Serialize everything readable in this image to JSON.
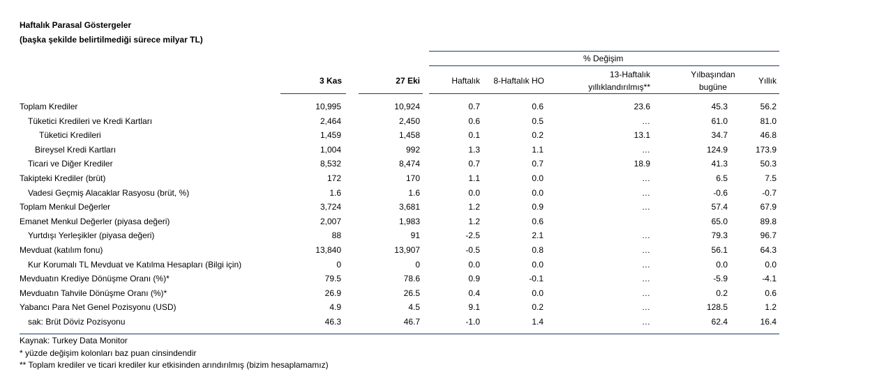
{
  "title": "Haftalık Parasal Göstergeler",
  "subtitle": "(başka şekilde belirtilmediği sürece milyar TL)",
  "header": {
    "pct_change": "% Değişim",
    "col1": "3 Kas",
    "col2": "27 Eki",
    "col3": "Haftalık",
    "col4": "8-Haftalık HO",
    "col5_line1": "13-Haftalık",
    "col5_line2": "yıllıklandırılmış**",
    "col6_line1": "Yılbaşından",
    "col6_line2": "bugüne",
    "col7": "Yıllık"
  },
  "rows": [
    {
      "label": "Toplam Krediler",
      "c1": "10,995",
      "c2": "10,924",
      "c3": "0.7",
      "c4": "0.6",
      "c5": "23.6",
      "c6": "45.3",
      "c7": "56.2"
    },
    {
      "label": "Tüketici Kredileri ve Kredi Kartları",
      "c1": "2,464",
      "c2": "2,450",
      "c3": "0.6",
      "c4": "0.5",
      "c5": "…",
      "c6": "61.0",
      "c7": "81.0"
    },
    {
      "label": "Tüketici Kredileri",
      "c1": "1,459",
      "c2": "1,458",
      "c3": "0.1",
      "c4": "0.2",
      "c5": "13.1",
      "c6": "34.7",
      "c7": "46.8"
    },
    {
      "label": "Bireysel Kredi Kartları",
      "c1": "1,004",
      "c2": "992",
      "c3": "1.3",
      "c4": "1.1",
      "c5": "…",
      "c6": "124.9",
      "c7": "173.9"
    },
    {
      "label": "Ticari ve Diğer Krediler",
      "c1": "8,532",
      "c2": "8,474",
      "c3": "0.7",
      "c4": "0.7",
      "c5": "18.9",
      "c6": "41.3",
      "c7": "50.3"
    },
    {
      "label": "Takipteki Krediler (brüt)",
      "c1": "172",
      "c2": "170",
      "c3": "1.1",
      "c4": "0.0",
      "c5": "…",
      "c6": "6.5",
      "c7": "7.5"
    },
    {
      "label": "Vadesi Geçmiş Alacaklar Rasyosu (brüt, %)",
      "c1": "1.6",
      "c2": "1.6",
      "c3": "0.0",
      "c4": "0.0",
      "c5": "…",
      "c6": "-0.6",
      "c7": "-0.7"
    },
    {
      "label": "Toplam Menkul Değerler",
      "c1": "3,724",
      "c2": "3,681",
      "c3": "1.2",
      "c4": "0.9",
      "c5": "…",
      "c6": "57.4",
      "c7": "67.9"
    },
    {
      "label": "Emanet Menkul Değerler (piyasa değeri)",
      "c1": "2,007",
      "c2": "1,983",
      "c3": "1.2",
      "c4": "0.6",
      "c5": "",
      "c6": "65.0",
      "c7": "89.8"
    },
    {
      "label": "Yurtdışı Yerleşikler (piyasa değeri)",
      "c1": "88",
      "c2": "91",
      "c3": "-2.5",
      "c4": "2.1",
      "c5": "…",
      "c6": "79.3",
      "c7": "96.7"
    },
    {
      "label": "Mevduat (katılım fonu)",
      "c1": "13,840",
      "c2": "13,907",
      "c3": "-0.5",
      "c4": "0.8",
      "c5": "…",
      "c6": "56.1",
      "c7": "64.3"
    },
    {
      "label": "Kur Korumalı TL Mevduat ve Katılma Hesapları (Bilgi için)",
      "c1": "0",
      "c2": "0",
      "c3": "0.0",
      "c4": "0.0",
      "c5": "…",
      "c6": "0.0",
      "c7": "0.0"
    },
    {
      "label": "Mevduatın Krediye Dönüşme Oranı (%)*",
      "c1": "79.5",
      "c2": "78.6",
      "c3": "0.9",
      "c4": "-0.1",
      "c5": "…",
      "c6": "-5.9",
      "c7": "-4.1"
    },
    {
      "label": "Mevduatın Tahvile Dönüşme Oranı (%)*",
      "c1": "26.9",
      "c2": "26.5",
      "c3": "0.4",
      "c4": "0.0",
      "c5": "…",
      "c6": "0.2",
      "c7": "0.6"
    },
    {
      "label": "Yabancı Para Net Genel Pozisyonu (USD)",
      "c1": "4.9",
      "c2": "4.5",
      "c3": "9.1",
      "c4": "0.2",
      "c5": "…",
      "c6": "128.5",
      "c7": "1.2"
    },
    {
      "label": "sak: Brüt Döviz Pozisyonu",
      "c1": "46.3",
      "c2": "46.7",
      "c3": "-1.0",
      "c4": "1.4",
      "c5": "…",
      "c6": "62.4",
      "c7": "16.4"
    }
  ],
  "footnotes": {
    "source": "Kaynak: Turkey Data Monitor",
    "note1": "* yüzde değişim kolonları baz puan cinsindendir",
    "note2": "** Toplam krediler ve ticari krediler kur etkisinden arındırılmış (bizim hesaplamamız)"
  }
}
